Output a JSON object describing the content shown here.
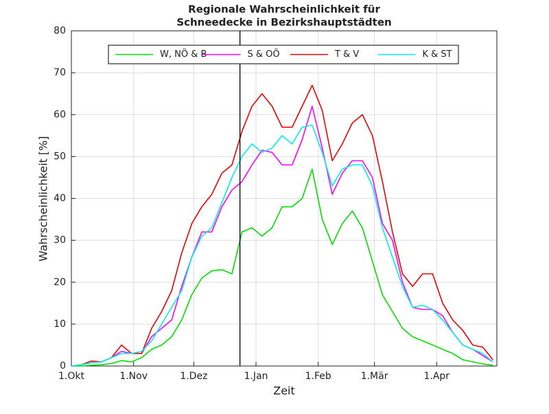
{
  "chart_data": {
    "type": "line",
    "title": [
      "Regionale Wahrscheinlichkeit für",
      "Schneedecke in Bezirkshauptstädten"
    ],
    "xlabel": "Zeit",
    "ylabel": "Wahrscheinlichkeit [%]",
    "x": [
      0,
      5,
      10,
      15,
      20,
      25,
      30,
      35,
      40,
      45,
      50,
      55,
      60,
      65,
      70,
      75,
      80,
      85,
      90,
      95,
      100,
      105,
      110,
      115,
      120,
      125,
      130,
      135,
      140,
      145,
      150,
      155,
      160,
      165,
      170,
      175,
      180,
      185,
      190,
      195,
      200,
      205,
      210
    ],
    "xlim": [
      0,
      212
    ],
    "xticks": [
      {
        "value": 0,
        "label": "1.Okt"
      },
      {
        "value": 31,
        "label": "1.Nov"
      },
      {
        "value": 61,
        "label": "1.Dez"
      },
      {
        "value": 92,
        "label": "1.Jan"
      },
      {
        "value": 123,
        "label": "1.Feb"
      },
      {
        "value": 151,
        "label": "1.Mär"
      },
      {
        "value": 182,
        "label": "1.Apr"
      }
    ],
    "ylim": [
      0,
      80
    ],
    "yticks": [
      0,
      10,
      20,
      30,
      40,
      50,
      60,
      70,
      80
    ],
    "grid": true,
    "legend": "top",
    "vline": 84,
    "series": [
      {
        "name": "W, NÖ & B",
        "color": "#00e000",
        "values": [
          0,
          0,
          0.2,
          0.3,
          0.6,
          1.3,
          1,
          2,
          4,
          5,
          7,
          11,
          17,
          21,
          22.7,
          23,
          22,
          32,
          33,
          31,
          33,
          38,
          38,
          40,
          47,
          35,
          29,
          34,
          37,
          33,
          25,
          17,
          13,
          9,
          7,
          6,
          5,
          4,
          3,
          1.5,
          1,
          0.5,
          0.2
        ]
      },
      {
        "name": "S & OÖ",
        "color": "#ff00ff",
        "values": [
          0,
          0.3,
          0.8,
          1,
          2,
          3.5,
          3,
          3,
          7,
          9,
          11,
          19,
          26,
          32,
          32,
          38,
          42,
          44,
          48,
          51.5,
          51,
          48,
          48,
          54,
          62,
          52,
          41,
          46,
          49,
          49,
          45,
          34,
          30,
          20,
          14,
          13.5,
          13.5,
          12,
          8,
          5,
          4,
          2.5,
          1
        ]
      },
      {
        "name": "T & V",
        "color": "#ee0000",
        "values": [
          0,
          0.3,
          1.2,
          1,
          2,
          5,
          3,
          3,
          9,
          13,
          18,
          27,
          34,
          38,
          41,
          46,
          48,
          56,
          62,
          65,
          62,
          57,
          57,
          62,
          67,
          61,
          49,
          53,
          58,
          60,
          55,
          44,
          32,
          22,
          19,
          22,
          22,
          15,
          11,
          8.5,
          5,
          4.5,
          1.5
        ]
      },
      {
        "name": "K & ST",
        "color": "#00eeee",
        "values": [
          0,
          0.3,
          0.8,
          1,
          2,
          3,
          3,
          3.5,
          6,
          10,
          14,
          18,
          26,
          31,
          33,
          39,
          45,
          50,
          53,
          51,
          52,
          55,
          53,
          57,
          57.5,
          51,
          43,
          47,
          48,
          48,
          43,
          33,
          26,
          19,
          14,
          14.5,
          13.5,
          11,
          8,
          5,
          4,
          3,
          1
        ]
      }
    ]
  }
}
